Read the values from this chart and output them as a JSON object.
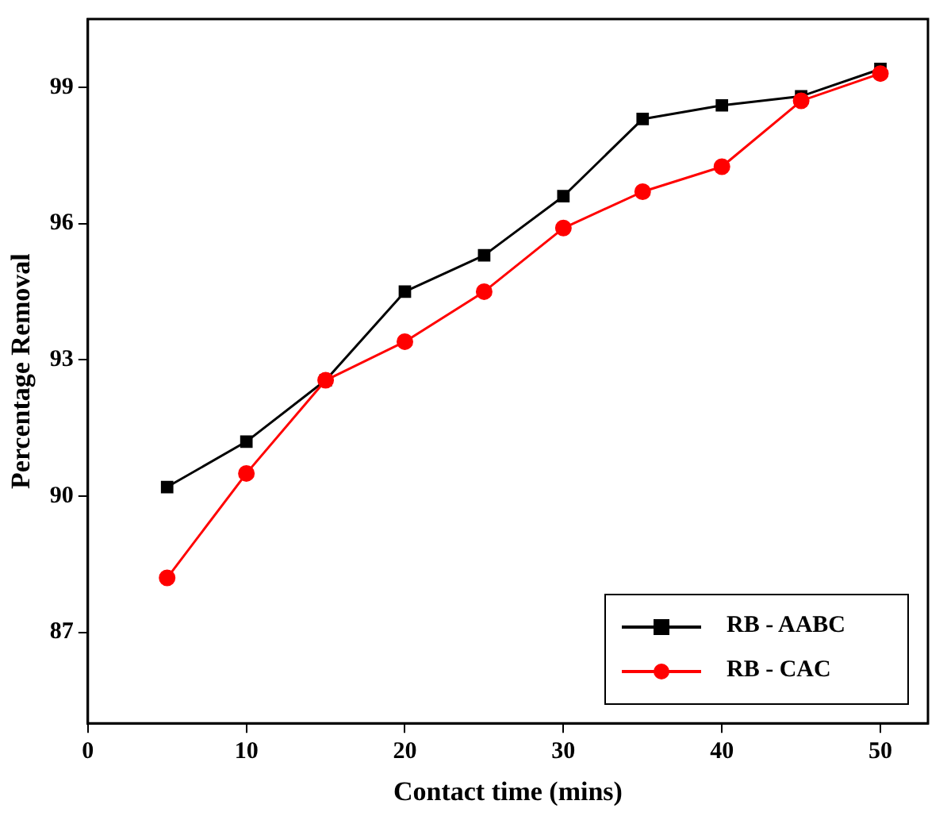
{
  "chart_data": {
    "type": "line",
    "xlabel": "Contact time (mins)",
    "ylabel": "Percentage Removal",
    "x": [
      5,
      10,
      15,
      20,
      25,
      30,
      35,
      40,
      45,
      50
    ],
    "series": [
      {
        "name": "RB - AABC",
        "color": "#000000",
        "marker": "square",
        "values": [
          90.2,
          91.2,
          92.55,
          94.5,
          95.3,
          96.6,
          98.3,
          98.6,
          98.8,
          99.4
        ]
      },
      {
        "name": "RB - CAC",
        "color": "#ff0000",
        "marker": "circle",
        "values": [
          88.2,
          90.5,
          92.55,
          93.4,
          94.5,
          95.9,
          96.7,
          97.25,
          98.7,
          99.3
        ]
      }
    ],
    "xlim": [
      0,
      53
    ],
    "xticks": [
      0,
      10,
      20,
      30,
      40,
      50
    ],
    "ylim": [
      85,
      100.5
    ],
    "yticks": [
      87,
      90,
      93,
      96,
      99
    ],
    "grid": false,
    "legend": "bottom right",
    "line_style": "solid"
  }
}
